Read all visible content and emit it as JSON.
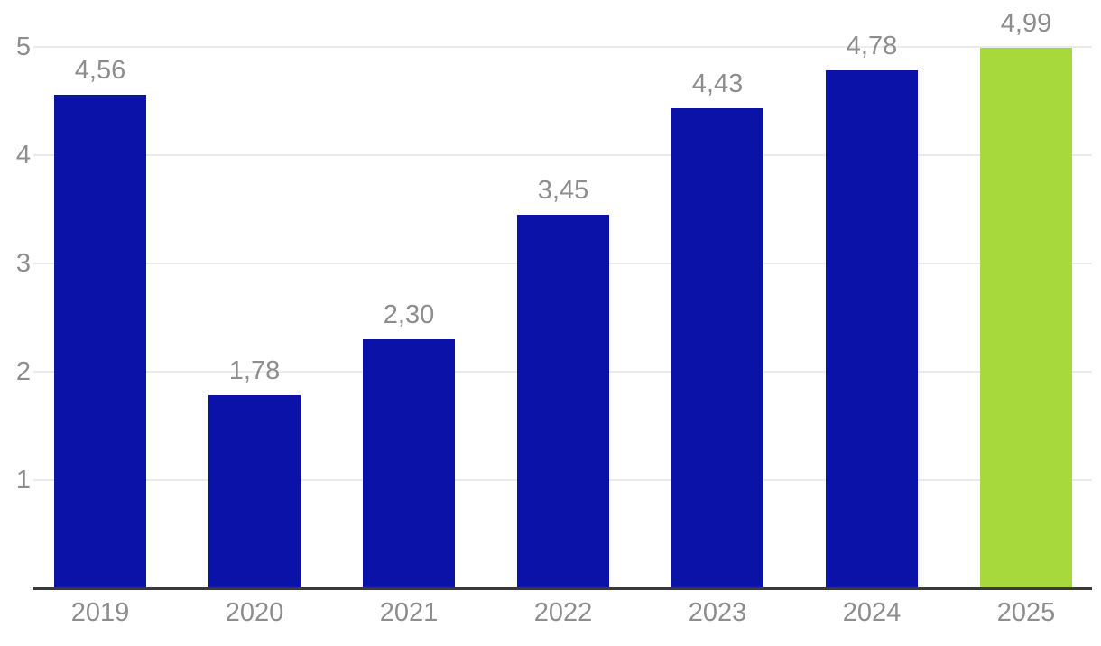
{
  "chart_data": {
    "type": "bar",
    "title": "",
    "xlabel": "",
    "ylabel": "",
    "categories": [
      "2019",
      "2020",
      "2021",
      "2022",
      "2023",
      "2024",
      "2025"
    ],
    "values": [
      4.56,
      1.78,
      2.3,
      3.45,
      4.43,
      4.78,
      4.99
    ],
    "value_labels": [
      "4,56",
      "1,78",
      "2,30",
      "3,45",
      "4,43",
      "4,78",
      "4,99"
    ],
    "y_ticks": [
      1,
      2,
      3,
      4,
      5
    ],
    "y_tick_labels": [
      "1",
      "2",
      "3",
      "4",
      "5"
    ],
    "ylim": [
      0,
      5
    ],
    "grid": true,
    "legend": false,
    "highlight_index": 6,
    "colors": {
      "bar": "#0b12a8",
      "highlight_bar": "#a8d93c",
      "gridline": "#ebebeb",
      "axis_line": "#3a3a3a",
      "label_text": "#8d8d8d",
      "background": "#ffffff"
    }
  }
}
